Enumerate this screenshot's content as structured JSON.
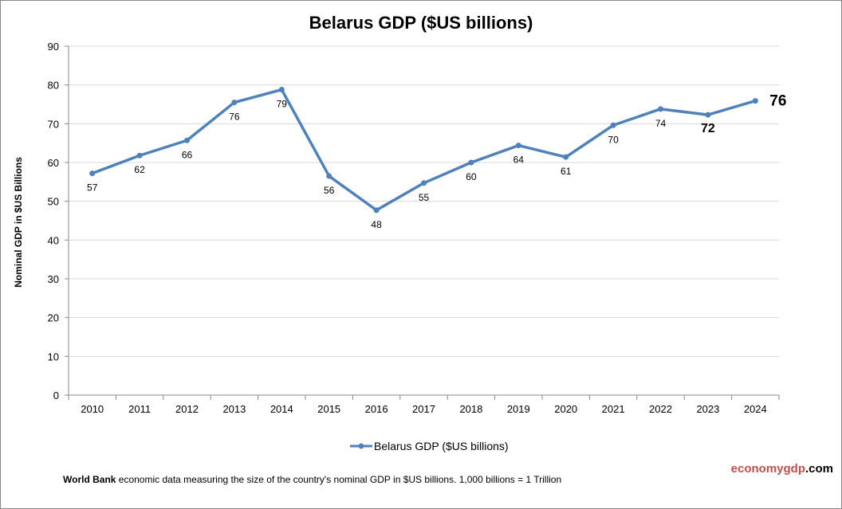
{
  "chart_data": {
    "type": "line",
    "title": "Belarus GDP ($US billions)",
    "ylabel": "Nominal GDP in $US Billions",
    "xlabel": "",
    "categories": [
      "2010",
      "2011",
      "2012",
      "2013",
      "2014",
      "2015",
      "2016",
      "2017",
      "2018",
      "2019",
      "2020",
      "2021",
      "2022",
      "2023",
      "2024"
    ],
    "series": [
      {
        "name": "Belarus GDP ($US billions)",
        "values": [
          57.2,
          61.8,
          65.7,
          75.5,
          78.8,
          56.5,
          47.7,
          54.7,
          60.0,
          64.4,
          61.4,
          69.6,
          73.8,
          72.3,
          75.9
        ],
        "labels": [
          "57",
          "62",
          "66",
          "76",
          "79",
          "56",
          "48",
          "55",
          "60",
          "64",
          "61",
          "70",
          "74",
          "72",
          "76"
        ]
      }
    ],
    "ylim": [
      0,
      90
    ],
    "yticks": [
      0,
      10,
      20,
      30,
      40,
      50,
      60,
      70,
      80,
      90
    ],
    "grid": true,
    "legend": "bottom",
    "colors": {
      "line": "#4f81bd",
      "grid": "#d9d9d9"
    }
  },
  "footer": {
    "source_bold": "World Bank",
    "source_text": " economic data  measuring the size of the country's nominal  GDP in $US billions. 1,000 billions = 1 Trillion"
  },
  "brand": {
    "part1": "economygdp",
    "part2": ".com",
    "color1": "#c0504d"
  }
}
